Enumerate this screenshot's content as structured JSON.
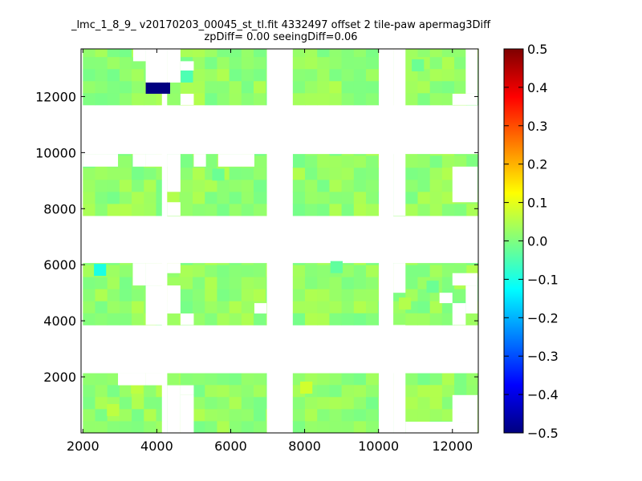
{
  "chart_data": {
    "type": "heatmap",
    "title_line1": "_lmc_1_8_9_ v20170203_00045_st_tl.fit 4332497 offset 2 tile-paw apermag3Diff",
    "title_line2": "zpDiff= 0.00 seeingDiff=0.06",
    "xlabel": "",
    "ylabel": "",
    "xlim": [
      1950,
      12700
    ],
    "ylim": [
      0,
      13700
    ],
    "x_ticks": [
      2000,
      4000,
      6000,
      8000,
      10000,
      12000
    ],
    "y_ticks": [
      2000,
      4000,
      6000,
      8000,
      10000,
      12000
    ],
    "colorbar": {
      "range": [
        -0.5,
        0.5
      ],
      "ticks": [
        -0.5,
        -0.4,
        -0.3,
        -0.2,
        -0.1,
        0.0,
        0.1,
        0.2,
        0.3,
        0.4,
        0.5
      ],
      "tick_labels": [
        "−0.5",
        "−0.4",
        "−0.3",
        "−0.2",
        "−0.1",
        "0.0",
        "0.1",
        "0.2",
        "0.3",
        "0.4",
        "0.5"
      ],
      "colormap": "jet"
    },
    "cell_size": [
      330,
      430
    ],
    "x_columns": [
      [
        2000,
        4130
      ],
      [
        4280,
        4640
      ],
      [
        4640,
        6970
      ],
      [
        7680,
        10000
      ],
      [
        10400,
        10730
      ],
      [
        10730,
        12680
      ]
    ],
    "y_blocks": [
      [
        0,
        2130
      ],
      [
        3850,
        6060
      ],
      [
        7750,
        9950
      ],
      [
        11700,
        13700
      ]
    ],
    "typical_value": 0.02,
    "cells": [
      {
        "x": 3700,
        "y": 12100,
        "value": -0.5,
        "w": 660,
        "h": 430
      },
      {
        "x": 2300,
        "y": 5600,
        "value": -0.1
      },
      {
        "x": 4650,
        "y": 12500,
        "value": -0.05
      },
      {
        "x": 7880,
        "y": 1400,
        "value": 0.08
      },
      {
        "x": 2650,
        "y": 600,
        "value": 0.06
      },
      {
        "x": 3300,
        "y": 1400,
        "value": 0.06
      },
      {
        "x": 10550,
        "y": 4400,
        "value": 0.05
      },
      {
        "x": 10900,
        "y": 12900,
        "value": -0.02
      },
      {
        "x": 11300,
        "y": 5000,
        "value": -0.02
      },
      {
        "x": 8700,
        "y": 5700,
        "value": -0.03
      },
      {
        "x": 5500,
        "y": 9000,
        "value": -0.02
      }
    ],
    "gaps": [
      {
        "x": [
          3700,
          4280
        ],
        "y": [
          1700,
          2130
        ]
      },
      {
        "x": [
          2950,
          3700
        ],
        "y": [
          1700,
          2130
        ]
      },
      {
        "x": [
          3700,
          4280
        ],
        "y": [
          9500,
          9950
        ]
      },
      {
        "x": [
          3350,
          3700
        ],
        "y": [
          9500,
          9950
        ]
      },
      {
        "x": [
          2000,
          2950
        ],
        "y": [
          9500,
          9950
        ]
      },
      {
        "x": [
          5000,
          5330
        ],
        "y": [
          9500,
          9950
        ]
      },
      {
        "x": [
          5660,
          6640
        ],
        "y": [
          9500,
          9950
        ]
      },
      {
        "x": [
          7020,
          7680
        ],
        "y": [
          9500,
          9950
        ]
      },
      {
        "x": [
          4280,
          4640
        ],
        "y": [
          8600,
          9950
        ]
      },
      {
        "x": [
          4280,
          4640
        ],
        "y": [
          7750,
          8230
        ]
      },
      {
        "x": [
          4280,
          4640
        ],
        "y": [
          0,
          1700
        ]
      },
      {
        "x": [
          4280,
          4640
        ],
        "y": [
          4260,
          5260
        ]
      },
      {
        "x": [
          4280,
          4640
        ],
        "y": [
          5700,
          6060
        ]
      },
      {
        "x": [
          3700,
          4280
        ],
        "y": [
          3850,
          5260
        ]
      },
      {
        "x": [
          3700,
          4280
        ],
        "y": [
          5260,
          6060
        ]
      },
      {
        "x": [
          3350,
          3700
        ],
        "y": [
          5260,
          6060
        ]
      },
      {
        "x": [
          4280,
          4640
        ],
        "y": [
          12500,
          13700
        ]
      },
      {
        "x": [
          3700,
          4280
        ],
        "y": [
          12500,
          13700
        ]
      },
      {
        "x": [
          3360,
          3700
        ],
        "y": [
          13260,
          13700
        ]
      },
      {
        "x": [
          4640,
          5000
        ],
        "y": [
          11700,
          12100
        ]
      },
      {
        "x": [
          4640,
          5000
        ],
        "y": [
          12930,
          13260
        ]
      },
      {
        "x": [
          6640,
          6970
        ],
        "y": [
          4260,
          4630
        ]
      },
      {
        "x": [
          4640,
          5000
        ],
        "y": [
          3850,
          4260
        ]
      },
      {
        "x": [
          4640,
          5000
        ],
        "y": [
          1350,
          1700
        ]
      },
      {
        "x": [
          4640,
          5000
        ],
        "y": [
          0,
          1350
        ]
      },
      {
        "x": [
          10730,
          12680
        ],
        "y": [
          0,
          400
        ]
      },
      {
        "x": [
          12000,
          12680
        ],
        "y": [
          400,
          1350
        ]
      },
      {
        "x": [
          12360,
          12680
        ],
        "y": [
          4260,
          5260
        ]
      },
      {
        "x": [
          12000,
          12680
        ],
        "y": [
          5260,
          5700
        ]
      },
      {
        "x": [
          11650,
          12000
        ],
        "y": [
          4630,
          5000
        ]
      },
      {
        "x": [
          12000,
          12360
        ],
        "y": [
          3850,
          4630
        ]
      },
      {
        "x": [
          12000,
          12680
        ],
        "y": [
          8230,
          9500
        ]
      },
      {
        "x": [
          12000,
          12680
        ],
        "y": [
          11700,
          12100
        ]
      },
      {
        "x": [
          12360,
          12680
        ],
        "y": [
          12100,
          13700
        ]
      },
      {
        "x": [
          10400,
          10730
        ],
        "y": [
          0,
          3850
        ]
      },
      {
        "x": [
          10400,
          10730
        ],
        "y": [
          5000,
          6060
        ]
      },
      {
        "x": [
          10400,
          10730
        ],
        "y": [
          7750,
          13700
        ]
      }
    ]
  }
}
